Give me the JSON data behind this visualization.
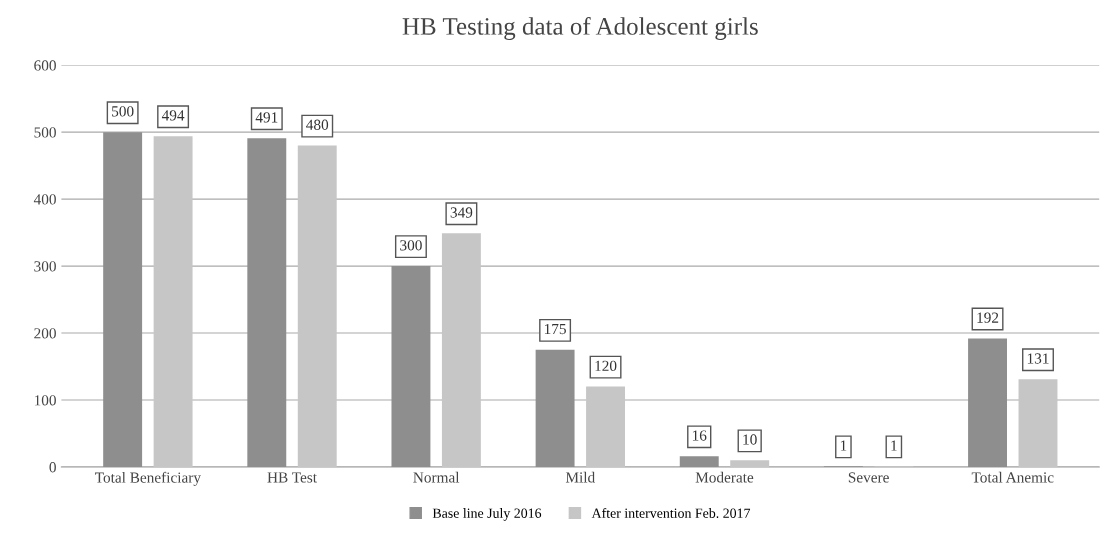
{
  "chart_data": {
    "type": "bar",
    "title": "HB Testing data of Adolescent girls",
    "categories": [
      "Total Beneficiary",
      "HB Test",
      "Normal",
      "Mild",
      "Moderate",
      "Severe",
      "Total Anemic"
    ],
    "series": [
      {
        "name": "Base line July 2016",
        "color": "#8e8e8e",
        "values": [
          500,
          491,
          300,
          175,
          16,
          1,
          192
        ]
      },
      {
        "name": "After intervention Feb. 2017",
        "color": "#c6c6c6",
        "values": [
          494,
          480,
          349,
          120,
          10,
          1,
          131
        ]
      }
    ],
    "ylim": [
      0,
      600
    ],
    "yticks": [
      0,
      100,
      200,
      300,
      400,
      500,
      600
    ],
    "grid": "y",
    "legend": "bottom",
    "data_labels": true
  }
}
